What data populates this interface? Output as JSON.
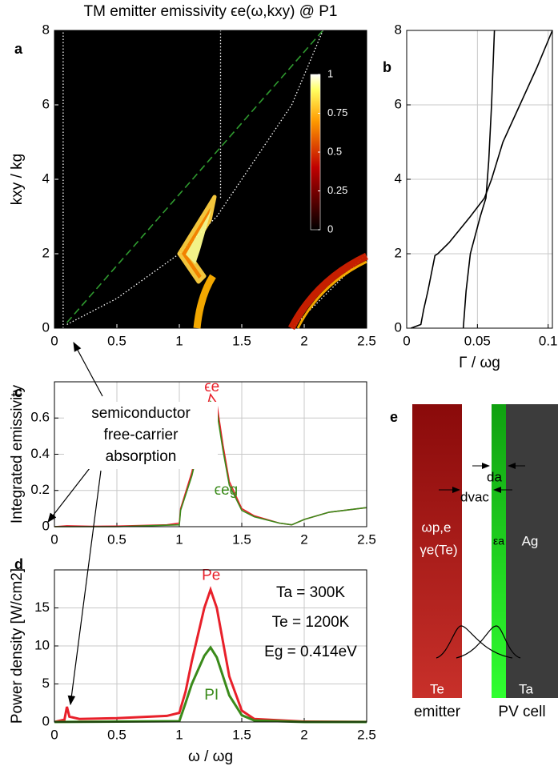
{
  "chart_data": [
    {
      "type": "heatmap",
      "panel": "a",
      "title": "TM emitter emissivity ϵe(ω,kxy) @ P1",
      "ylabel": "kxy / kg",
      "xlim": [
        0,
        2.5
      ],
      "ylim": [
        0,
        8
      ],
      "xticks": [
        0,
        0.5,
        1,
        1.5,
        2,
        2.5
      ],
      "yticks": [
        0,
        2,
        4,
        6,
        8
      ],
      "grid": false,
      "colorbar": {
        "lim": [
          0,
          1
        ],
        "ticks": [
          0,
          0.25,
          0.5,
          0.75,
          1
        ]
      },
      "series": [
        {
          "color": "#2f9a2f",
          "style": "dashed",
          "x": [
            0.1,
            2.15
          ],
          "values": [
            0.15,
            8
          ]
        },
        {
          "color": "#ffffff",
          "style": "dotted",
          "x": [
            0.07,
            0.07
          ],
          "values": [
            0,
            8
          ]
        },
        {
          "color": "#ffffff",
          "style": "dotted",
          "x": [
            1.33,
            1.33
          ],
          "values": [
            3.5,
            8
          ]
        },
        {
          "color": "#ffffff",
          "style": "dotted",
          "x": [
            0.1,
            0.5,
            1.0,
            1.3,
            1.6,
            1.9,
            2.15
          ],
          "values": [
            0.1,
            0.8,
            2,
            3,
            4.5,
            6,
            8
          ]
        },
        {
          "color": "#ffffff",
          "style": "dotted",
          "x": [
            1.9,
            2.2,
            2.5
          ],
          "values": [
            0,
            1,
            2
          ]
        }
      ]
    },
    {
      "type": "line",
      "panel": "b",
      "xlabel": "Γ / ωg",
      "xlim": [
        0,
        0.103
      ],
      "ylim": [
        0,
        8
      ],
      "xticks": [
        0,
        0.05,
        0.1
      ],
      "yticks": [
        0,
        2,
        4,
        6,
        8
      ],
      "grid": true,
      "series": [
        {
          "color": "#000000",
          "style": "solid",
          "x": [
            0.003,
            0.01,
            0.012,
            0.015,
            0.02,
            0.022,
            0.03,
            0.045,
            0.055,
            0.06,
            0.068,
            0.08,
            0.092,
            0.103
          ],
          "values": [
            0,
            0.1,
            0.5,
            1,
            1.95,
            2,
            2.3,
            3,
            3.5,
            4,
            5,
            6,
            7,
            8
          ]
        },
        {
          "color": "#000000",
          "style": "solid",
          "x": [
            0.04,
            0.042,
            0.045,
            0.052,
            0.056,
            0.058,
            0.06,
            0.062
          ],
          "values": [
            0,
            1,
            2,
            3,
            3.5,
            4.5,
            6,
            8
          ]
        }
      ]
    },
    {
      "type": "line",
      "panel": "c",
      "ylabel": "Integrated emissivity",
      "xlim": [
        0,
        2.5
      ],
      "ylim": [
        0,
        0.8
      ],
      "xticks": [
        0,
        0.5,
        1,
        1.5,
        2,
        2.5
      ],
      "yticks": [
        0,
        0.2,
        0.4,
        0.6
      ],
      "grid": true,
      "series": [
        {
          "name": "ϵe",
          "color": "#e8202a",
          "style": "solid",
          "x": [
            0,
            0.1,
            0.3,
            0.5,
            0.9,
            1.0,
            1.01,
            1.1,
            1.2,
            1.25,
            1.3,
            1.35,
            1.4,
            1.5,
            1.6,
            1.8,
            1.9,
            2.0,
            2.2,
            2.5
          ],
          "values": [
            0,
            0.005,
            0.002,
            0.003,
            0.01,
            0.02,
            0.1,
            0.3,
            0.6,
            0.73,
            0.68,
            0.45,
            0.25,
            0.1,
            0.06,
            0.02,
            0.01,
            0.04,
            0.08,
            0.105
          ]
        },
        {
          "name": "ϵeg",
          "color": "#3a8a1a",
          "style": "solid",
          "x": [
            0,
            0.5,
            1.0,
            1.01,
            1.1,
            1.2,
            1.25,
            1.3,
            1.35,
            1.4,
            1.5,
            1.6,
            1.8,
            1.9,
            2.0,
            2.2,
            2.5
          ],
          "values": [
            0,
            0,
            0.01,
            0.09,
            0.28,
            0.57,
            0.69,
            0.64,
            0.42,
            0.23,
            0.09,
            0.055,
            0.02,
            0.01,
            0.04,
            0.08,
            0.105
          ]
        }
      ]
    },
    {
      "type": "line",
      "panel": "d",
      "xlabel": "ω / ωg",
      "ylabel": "Power density [W/cm2]",
      "xlim": [
        0,
        2.5
      ],
      "ylim": [
        0,
        20
      ],
      "xticks": [
        0,
        0.5,
        1,
        1.5,
        2,
        2.5
      ],
      "yticks": [
        0,
        5,
        10,
        15
      ],
      "grid": true,
      "annotations": [
        "Ta = 300K",
        "Te = 1200K",
        "Eg = 0.414eV"
      ],
      "series": [
        {
          "name": "Pe",
          "color": "#e8202a",
          "style": "thick",
          "x": [
            0,
            0.08,
            0.1,
            0.12,
            0.2,
            0.5,
            0.9,
            1.0,
            1.05,
            1.1,
            1.2,
            1.25,
            1.3,
            1.4,
            1.5,
            1.6,
            2.0,
            2.5
          ],
          "values": [
            0,
            0.3,
            2,
            0.7,
            0.4,
            0.5,
            0.8,
            1.2,
            4,
            8,
            15,
            17.4,
            15,
            6,
            1.5,
            0.4,
            0.05,
            0.01
          ]
        },
        {
          "name": "PI",
          "color": "#3a8a1a",
          "style": "thick",
          "x": [
            0,
            1.0,
            1.05,
            1.1,
            1.2,
            1.25,
            1.3,
            1.4,
            1.5,
            1.6,
            2.0,
            2.5
          ],
          "values": [
            0,
            0.1,
            2.5,
            5,
            8.7,
            9.8,
            8.5,
            3.5,
            0.9,
            0.2,
            0,
            0
          ]
        }
      ]
    }
  ],
  "annotation": {
    "lines": [
      "semiconductor",
      "free-carrier",
      "absorption"
    ]
  },
  "diagram": {
    "panel": "e",
    "emitter_params": [
      "ωp,e",
      "γe(Te)"
    ],
    "absorber": "εa",
    "substrate": "Ag",
    "gap_a": "da",
    "gap_vac": "dvac",
    "emitter_temp": "Te",
    "cell_temp": "Ta",
    "emitter": "emitter",
    "cell": "PV cell"
  }
}
